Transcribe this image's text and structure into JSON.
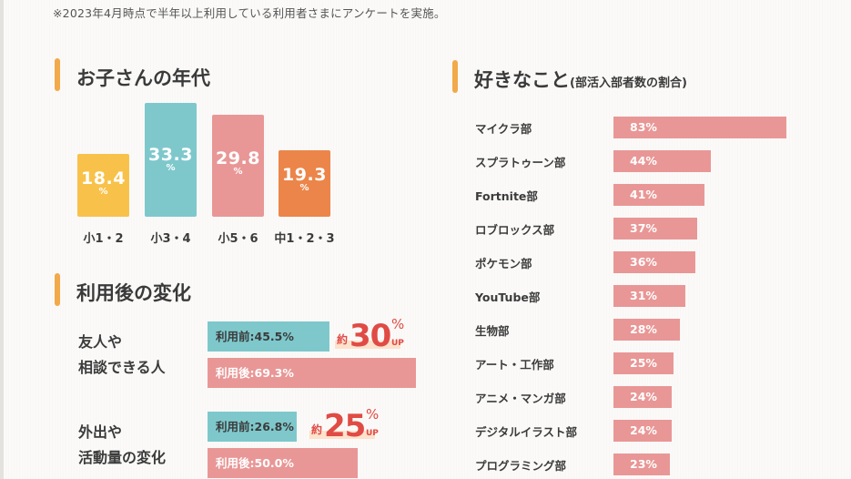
{
  "note": "※2023年4月時点で半年以上利用している利用者さまにアンケートを実施。",
  "colors": {
    "accent": "#f2a94a",
    "yellow": "#f8c24a",
    "teal": "#7ec8cc",
    "pink": "#e89796",
    "orange": "#ec8549",
    "red": "#e04b45"
  },
  "sections": {
    "age": {
      "title": "お子さんの年代"
    },
    "change": {
      "title": "利用後の変化"
    },
    "likes": {
      "title": "好きなこと",
      "subtitle": "(部活入部者数の割合)"
    }
  },
  "chart_data": [
    {
      "type": "bar",
      "title": "お子さんの年代",
      "categories": [
        "小1・2",
        "小3・4",
        "小5・6",
        "中1・2・3"
      ],
      "values": [
        18.4,
        33.3,
        29.8,
        19.3
      ],
      "value_labels": [
        "18.4",
        "33.3",
        "29.8",
        "19.3"
      ],
      "unit": "%",
      "bar_colors": [
        "#f8c24a",
        "#7ec8cc",
        "#e89796",
        "#ec8549"
      ]
    },
    {
      "type": "bar",
      "orientation": "horizontal",
      "title": "利用後の変化",
      "groups": [
        {
          "label_lines": [
            "友人や",
            "相談できる人"
          ],
          "before": {
            "label": "利用前:45.5%",
            "value": 45.5
          },
          "after": {
            "label": "利用後:69.3%",
            "value": 69.3
          },
          "increase": {
            "prefix": "約",
            "value": "30",
            "unit": "%",
            "suffix": "UP"
          }
        },
        {
          "label_lines": [
            "外出や",
            "活動量の変化"
          ],
          "before": {
            "label": "利用前:26.8%",
            "value": 26.8
          },
          "after": {
            "label": "利用後:50.0%",
            "value": 50.0
          },
          "increase": {
            "prefix": "約",
            "value": "25",
            "unit": "%",
            "suffix": "UP"
          }
        }
      ]
    },
    {
      "type": "bar",
      "orientation": "horizontal",
      "title": "好きなこと(部活入部者数の割合)",
      "categories": [
        "マイクラ部",
        "スプラトゥーン部",
        "Fortnite部",
        "ロブロックス部",
        "ポケモン部",
        "YouTube部",
        "生物部",
        "アート・工作部",
        "アニメ・マンガ部",
        "デジタルイラスト部",
        "プログラミング部"
      ],
      "values": [
        83,
        44,
        41,
        37,
        36,
        31,
        28,
        25,
        24,
        24,
        23
      ],
      "value_labels": [
        "83%",
        "44%",
        "41%",
        "37%",
        "36%",
        "31%",
        "28%",
        "25%",
        "24%",
        "24%",
        "23%"
      ],
      "unit": "%"
    }
  ]
}
